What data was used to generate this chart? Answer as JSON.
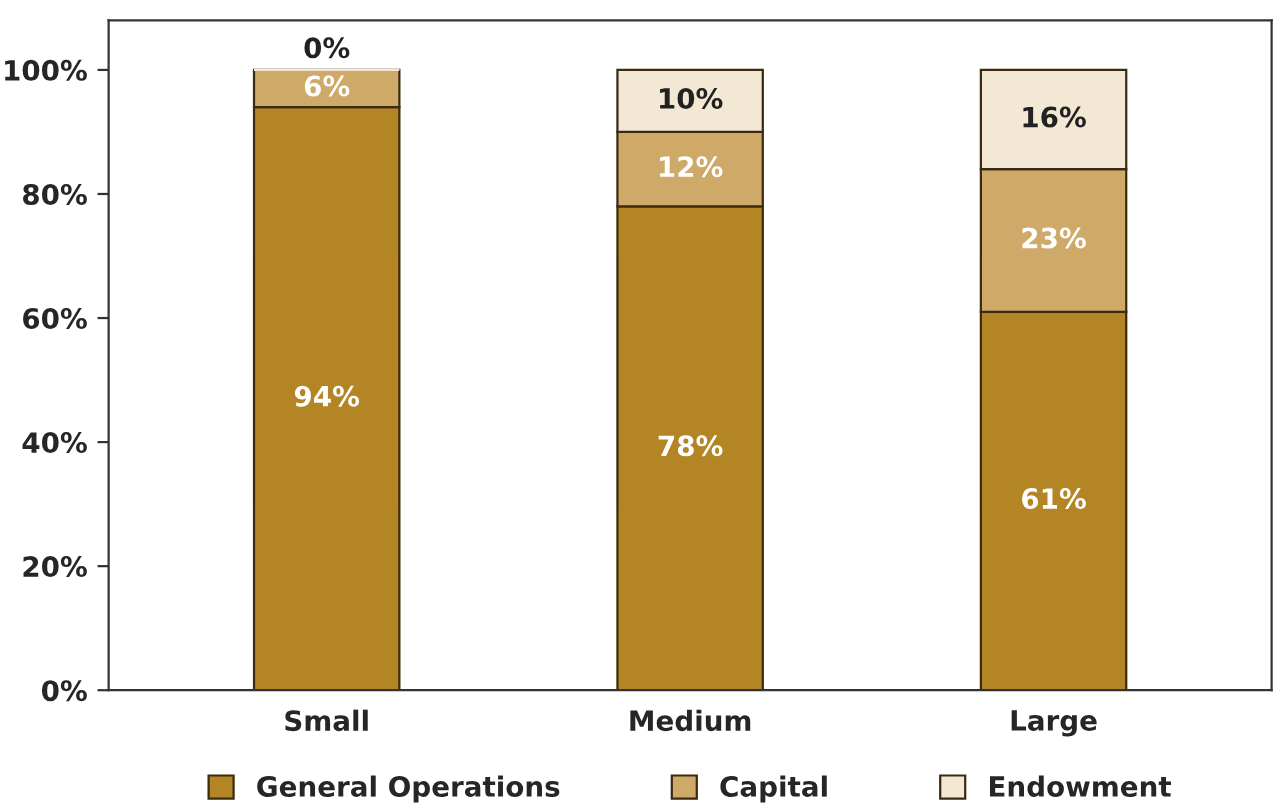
{
  "chart_data": {
    "type": "bar",
    "stacked": true,
    "categories": [
      "Small",
      "Medium",
      "Large"
    ],
    "series": [
      {
        "name": "General Operations",
        "color": "#b38524",
        "values": [
          94,
          78,
          61
        ],
        "value_labels": [
          "94%",
          "78%",
          "61%"
        ]
      },
      {
        "name": "Capital",
        "color": "#cfa968",
        "values": [
          6,
          12,
          23
        ],
        "value_labels": [
          "6%",
          "12%",
          "23%"
        ]
      },
      {
        "name": "Endowment",
        "color": "#f3e8d4",
        "values": [
          0,
          10,
          16
        ],
        "value_labels": [
          "0%",
          "10%",
          "16%"
        ]
      }
    ],
    "ylim": [
      0,
      108
    ],
    "yticks": [
      {
        "value": 0,
        "label": "0%"
      },
      {
        "value": 20,
        "label": "20%"
      },
      {
        "value": 40,
        "label": "40%"
      },
      {
        "value": 60,
        "label": "60%"
      },
      {
        "value": 80,
        "label": "80%"
      },
      {
        "value": 100,
        "label": "100%"
      }
    ],
    "legend": "bottom",
    "grid": false
  }
}
